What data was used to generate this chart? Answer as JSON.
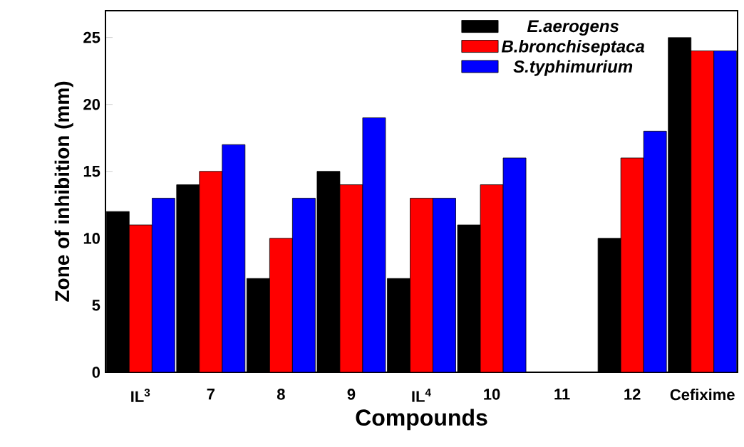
{
  "chart_data": {
    "type": "bar",
    "xlabel": "Compounds",
    "ylabel": "Zone of inhibition (mm)",
    "categories": [
      "IL$^{3}$",
      "7",
      "8",
      "9",
      "IL$^{4}$",
      "10",
      "11",
      "12",
      "Cefixime"
    ],
    "series": [
      {
        "name": "E.aerogens",
        "color": "#000000",
        "values": [
          12,
          14,
          7,
          15,
          7,
          11,
          0,
          10,
          25
        ]
      },
      {
        "name": "B.bronchiseptaca",
        "color": "#ff0000",
        "values": [
          11,
          15,
          10,
          14,
          13,
          14,
          0,
          16,
          24
        ]
      },
      {
        "name": "S.typhimurium",
        "color": "#0000ff",
        "values": [
          13,
          17,
          13,
          19,
          13,
          16,
          0,
          18,
          24
        ]
      }
    ],
    "ylim": [
      0,
      27
    ],
    "yticks": [
      0,
      5,
      10,
      15,
      20,
      25
    ],
    "legend": "top right",
    "grid": false
  }
}
